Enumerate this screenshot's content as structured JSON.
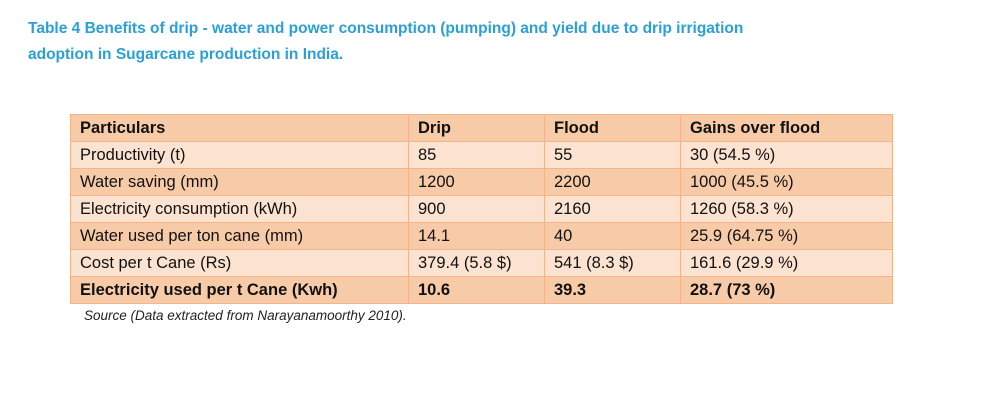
{
  "caption": "Table 4 Benefits of drip - water and power consumption (pumping) and yield due to drip irrigation adoption in Sugarcane production in India.",
  "table": {
    "headers": [
      "Particulars",
      "Drip",
      "Flood",
      "Gains over flood"
    ],
    "rows": [
      [
        "Productivity (t)",
        "85",
        "55",
        "30 (54.5 %)"
      ],
      [
        "Water saving (mm)",
        "1200",
        "2200",
        "1000 (45.5 %)"
      ],
      [
        "Electricity consumption (kWh)",
        "900",
        "2160",
        "1260 (58.3 %)"
      ],
      [
        "Water used per ton cane (mm)",
        "14.1",
        "40",
        "25.9 (64.75 %)"
      ],
      [
        "Cost per t Cane (Rs)",
        "379.4 (5.8 $)",
        "541 (8.3 $)",
        "161.6 (29.9 %)"
      ],
      [
        "Electricity used per t Cane (Kwh)",
        "10.6",
        "39.3",
        "28.7 (73 %)"
      ]
    ]
  },
  "source": "Source (Data extracted from Narayanamoorthy 2010).",
  "colors": {
    "caption": "#2aa0d6",
    "row_dark": "#f8cba8",
    "row_light": "#fce3d1",
    "border": "#f5b38a"
  }
}
